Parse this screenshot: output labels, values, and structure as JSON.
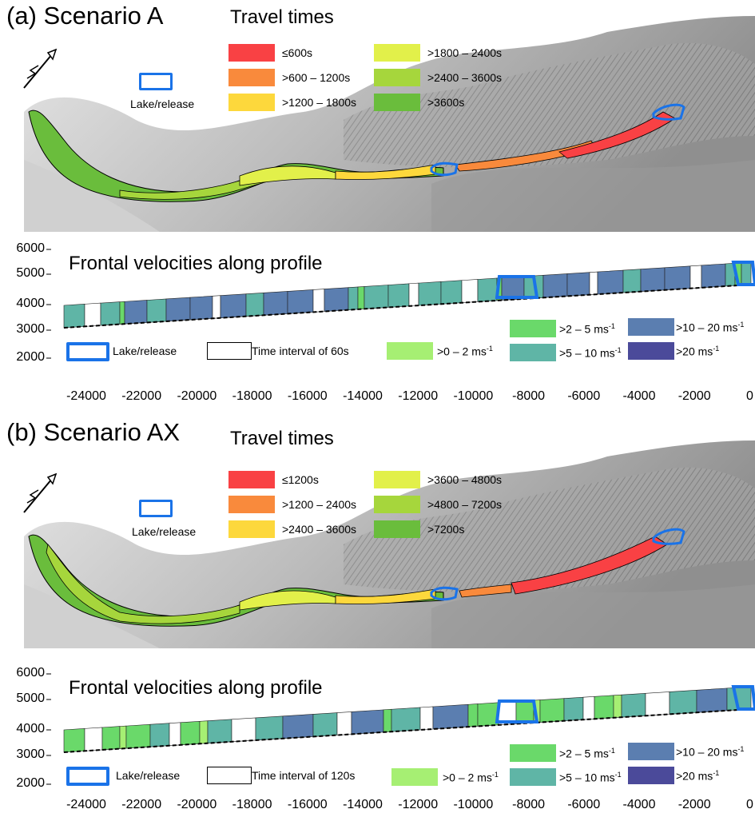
{
  "colors": {
    "tt1": "#f94144",
    "tt2": "#f98a3c",
    "tt3": "#fdd83c",
    "tt4": "#e2f04a",
    "tt5": "#a6d63c",
    "tt6": "#6abd3c",
    "v1": "#a6ef73",
    "v2": "#6ad96a",
    "v3": "#5fb5a6",
    "v4": "#5b7eb0",
    "v5": "#4b4a9a",
    "lake": "#1a73e8"
  },
  "panel_a": {
    "title": "(a) Scenario A",
    "travel_title": "Travel times",
    "tt_labels": [
      "≤600s",
      ">600 – 1200s",
      ">1200 – 1800s",
      ">1800 – 2400s",
      ">2400 – 3600s",
      ">3600s"
    ],
    "lake_label": "Lake/release",
    "fv_title": "Frontal velocities along profile",
    "interval_label": "Time interval of 60s"
  },
  "panel_b": {
    "title": "(b) Scenario AX",
    "travel_title": "Travel times",
    "tt_labels": [
      "≤1200s",
      ">1200 – 2400s",
      ">2400 – 3600s",
      ">3600 – 4800s",
      ">4800 – 7200s",
      ">7200s"
    ],
    "lake_label": "Lake/release",
    "fv_title": "Frontal velocities along profile",
    "interval_label": "Time interval of 120s"
  },
  "velocity_legend": {
    "v1_label": ">0 – 2 ms",
    "v2_label": ">2 – 5 ms",
    "v3_label": ">5 – 10 ms",
    "v4_label": ">10 – 20 ms",
    "v5_label": ">20 ms",
    "unit_sup": "-1"
  },
  "chart_data": [
    {
      "type": "bar",
      "title": "Frontal velocities along profile",
      "yticks": [
        "6000",
        "5000",
        "4000",
        "3000",
        "2000"
      ],
      "xticks": [
        "-24000",
        "-22000",
        "-20000",
        "-18000",
        "-16000",
        "-14000",
        "-12000",
        "-10000",
        "-8000",
        "-6000",
        "-4000",
        "-2000",
        "0"
      ],
      "ylim": [
        2000,
        6000
      ],
      "xlim": [
        -24000,
        0
      ]
    },
    {
      "type": "bar",
      "title": "Frontal velocities along profile",
      "yticks": [
        "6000",
        "5000",
        "4000",
        "3000",
        "2000"
      ],
      "xticks": [
        "-24000",
        "-22000",
        "-20000",
        "-18000",
        "-16000",
        "-14000",
        "-12000",
        "-10000",
        "-8000",
        "-6000",
        "-4000",
        "-2000",
        "0"
      ],
      "ylim": [
        2000,
        6000
      ],
      "xlim": [
        -24000,
        0
      ]
    }
  ]
}
